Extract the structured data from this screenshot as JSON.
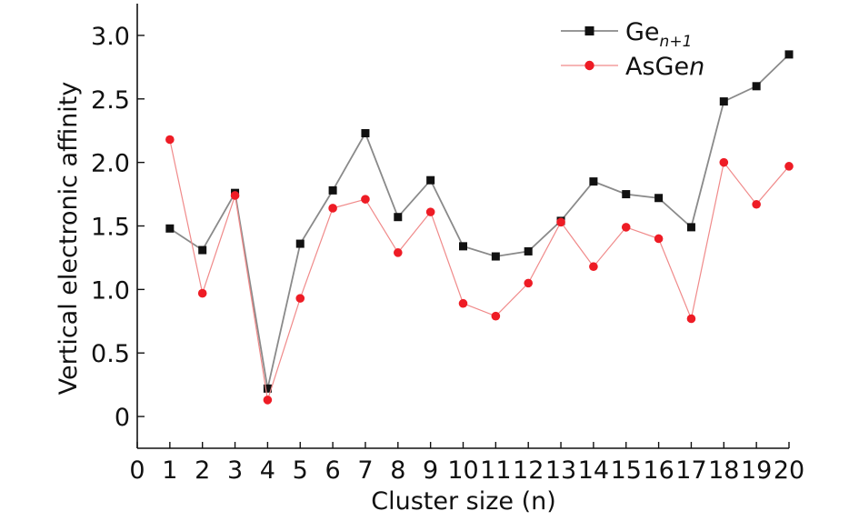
{
  "chart_data": {
    "type": "line",
    "xlabel": "Cluster size (n)",
    "ylabel": "Vertical electronic affinity",
    "xlim": [
      0,
      20
    ],
    "ylim": [
      -0.25,
      3.25
    ],
    "x_ticks": [
      "0",
      "1",
      "2",
      "3",
      "4",
      "5",
      "6",
      "7",
      "8",
      "9",
      "10",
      "11",
      "12",
      "13",
      "14",
      "15",
      "16",
      "17",
      "18",
      "19",
      "20"
    ],
    "y_ticks": [
      "0",
      "0.5",
      "1.0",
      "1.5",
      "2.0",
      "2.5",
      "3.0"
    ],
    "x": [
      1,
      2,
      3,
      4,
      5,
      6,
      7,
      8,
      9,
      10,
      11,
      12,
      13,
      14,
      15,
      16,
      17,
      18,
      19,
      20
    ],
    "series": [
      {
        "name": "Gen+1",
        "label_base": "Ge",
        "label_sub": "n+1",
        "color": "#111111",
        "line_color": "#8a8a8a",
        "marker": "square",
        "values": [
          1.48,
          1.31,
          1.76,
          0.22,
          1.36,
          1.78,
          2.23,
          1.57,
          1.86,
          1.34,
          1.26,
          1.3,
          1.54,
          1.85,
          1.75,
          1.72,
          1.49,
          2.48,
          2.6,
          2.85
        ]
      },
      {
        "name": "AsGen",
        "label_base": "AsGe",
        "label_italic": "n",
        "color": "#ee1c25",
        "line_color": "#f08a8a",
        "marker": "circle",
        "values": [
          2.18,
          0.97,
          1.74,
          0.13,
          0.93,
          1.64,
          1.71,
          1.29,
          1.61,
          0.89,
          0.79,
          1.05,
          1.53,
          1.18,
          1.49,
          1.4,
          0.77,
          2.0,
          1.67,
          1.97
        ]
      }
    ],
    "grid": false,
    "legend_position": "top-right"
  }
}
